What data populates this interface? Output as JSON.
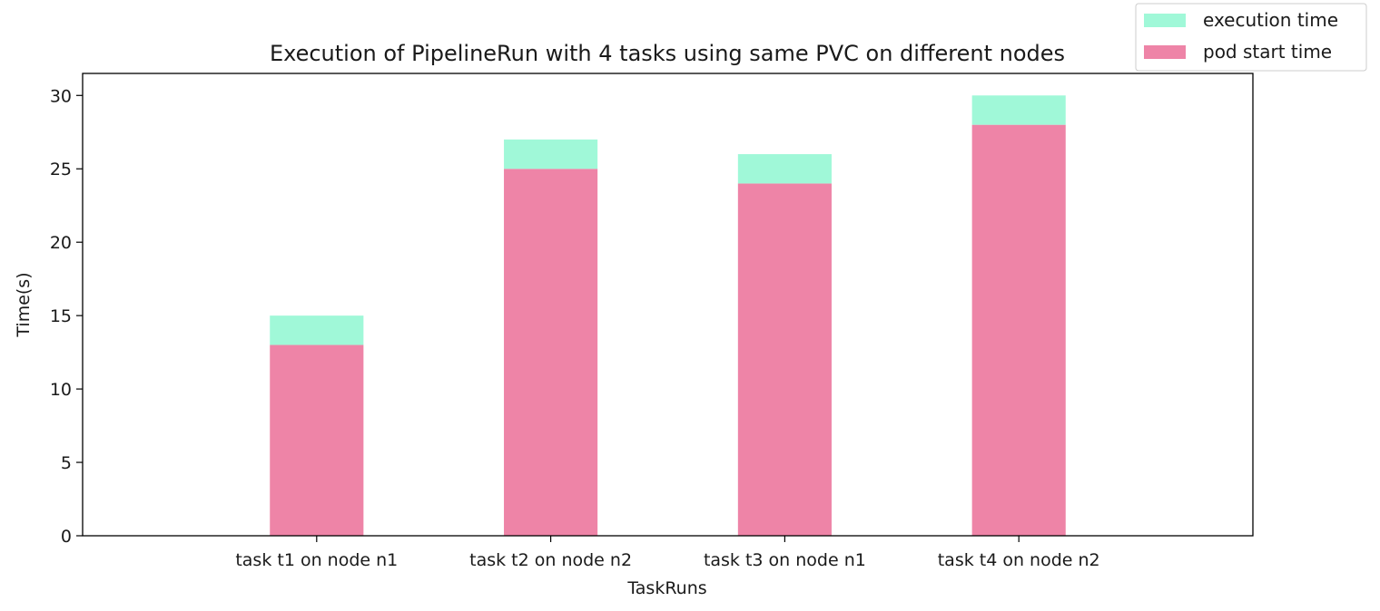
{
  "chart_data": {
    "type": "bar",
    "stacked": true,
    "title": "Execution of PipelineRun with 4 tasks using same PVC on different nodes",
    "xlabel": "TaskRuns",
    "ylabel": "Time(s)",
    "categories": [
      "task t1 on node n1",
      "task t2 on node n2",
      "task t3 on node n1",
      "task t4 on node n2"
    ],
    "series": [
      {
        "name": "pod start time",
        "values": [
          13,
          25,
          24,
          28
        ],
        "color": "#ee84a7"
      },
      {
        "name": "execution time",
        "values": [
          2,
          2,
          2,
          2
        ],
        "color": "#a0f8d8"
      }
    ],
    "ylim": [
      0,
      31.5
    ],
    "yticks": [
      0,
      5,
      10,
      15,
      20,
      25,
      30
    ],
    "grid": false,
    "legend_position": "top-right",
    "legend_order": [
      "execution time",
      "pod start time"
    ]
  }
}
